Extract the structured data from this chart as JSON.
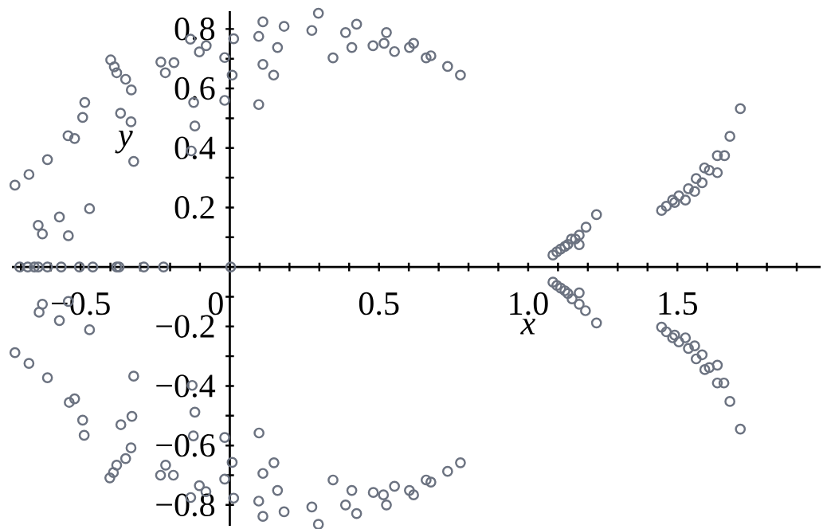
{
  "chart_data": {
    "type": "scatter",
    "xlabel": "x",
    "ylabel": "y",
    "color": "#6b7280",
    "marker": "circle",
    "xlim": [
      -0.73,
      1.98
    ],
    "ylim": [
      -0.87,
      0.86
    ],
    "xticks": [
      {
        "value": -0.7,
        "label": null
      },
      {
        "value": -0.6,
        "label": null
      },
      {
        "value": -0.5,
        "label": "−0.5"
      },
      {
        "value": -0.4,
        "label": null
      },
      {
        "value": -0.3,
        "label": null
      },
      {
        "value": -0.2,
        "label": null
      },
      {
        "value": -0.1,
        "label": null
      },
      0,
      {
        "value": 0.1,
        "label": null
      },
      {
        "value": 0.2,
        "label": null
      },
      {
        "value": 0.3,
        "label": null
      },
      {
        "value": 0.4,
        "label": null
      },
      0.5,
      {
        "value": 0.6,
        "label": null
      },
      {
        "value": 0.7,
        "label": null
      },
      {
        "value": 0.8,
        "label": null
      },
      {
        "value": 0.9,
        "label": null
      },
      {
        "value": 1.0,
        "label": "1.0"
      },
      {
        "value": 1.1,
        "label": null
      },
      {
        "value": 1.2,
        "label": null
      },
      {
        "value": 1.3,
        "label": null
      },
      {
        "value": 1.4,
        "label": null
      },
      1.5,
      {
        "value": 1.6,
        "label": null
      },
      {
        "value": 1.7,
        "label": null
      },
      {
        "value": 1.8,
        "label": null
      },
      {
        "value": 1.9,
        "label": null
      }
    ],
    "yticks": [
      {
        "value": -0.8,
        "label": "−0.8"
      },
      {
        "value": -0.7,
        "label": null
      },
      {
        "value": -0.6,
        "label": "−0.6"
      },
      {
        "value": -0.5,
        "label": null
      },
      {
        "value": -0.4,
        "label": "−0.4"
      },
      {
        "value": -0.3,
        "label": null
      },
      {
        "value": -0.2,
        "label": "−0.2"
      },
      {
        "value": -0.1,
        "label": null
      },
      {
        "value": 0.1,
        "label": null
      },
      0.2,
      {
        "value": 0.3,
        "label": null
      },
      0.4,
      {
        "value": 0.5,
        "label": null
      },
      0.6,
      {
        "value": 0.7,
        "label": null
      },
      0.8
    ],
    "x": [
      -0.72,
      -0.673,
      -0.611,
      -0.542,
      -0.52,
      -0.493,
      -0.486,
      -0.399,
      -0.387,
      -0.379,
      -0.349,
      -0.33,
      -0.366,
      -0.331,
      -0.322,
      -0.231,
      -0.187,
      -0.216,
      -0.132,
      -0.102,
      -0.079,
      -0.121,
      -0.117,
      -0.129,
      -0.017,
      0.008,
      -0.017,
      0.013,
      -0.642,
      -0.628,
      -0.571,
      -0.541,
      -0.47,
      -0.704,
      -0.677,
      -0.655,
      -0.642,
      -0.611,
      -0.565,
      -0.504,
      -0.459,
      -0.379,
      -0.371,
      -0.288,
      -0.222,
      0.003,
      0.111,
      0.097,
      0.182,
      0.16,
      0.111,
      0.147,
      0.097,
      0.297,
      0.275,
      0.346,
      0.388,
      0.425,
      0.409,
      0.48,
      0.517,
      0.525,
      0.552,
      0.602,
      0.616,
      0.658,
      0.674,
      0.73,
      0.773,
      1.711,
      1.676,
      1.634,
      1.658,
      1.634,
      1.591,
      1.607,
      1.563,
      1.583,
      1.537,
      1.558,
      1.505,
      1.527,
      1.484,
      1.491,
      1.463,
      1.447,
      1.229,
      1.194,
      1.171,
      1.171,
      1.145,
      1.083,
      1.096,
      1.109,
      1.123,
      1.133,
      1.158,
      -0.72,
      -0.673,
      -0.611,
      -0.538,
      -0.52,
      -0.493,
      -0.488,
      -0.402,
      -0.39,
      -0.379,
      -0.349,
      -0.331,
      -0.365,
      -0.328,
      -0.322,
      -0.232,
      -0.189,
      -0.215,
      -0.131,
      -0.102,
      -0.08,
      -0.122,
      -0.117,
      -0.126,
      -0.017,
      0.008,
      -0.017,
      0.013,
      -0.639,
      -0.628,
      -0.571,
      -0.541,
      -0.47,
      0.098,
      0.111,
      0.148,
      0.16,
      0.097,
      0.111,
      0.182,
      0.275,
      0.297,
      0.346,
      0.388,
      0.425,
      0.409,
      0.481,
      0.515,
      0.525,
      0.552,
      0.602,
      0.616,
      0.658,
      0.674,
      0.73,
      0.773,
      1.711,
      1.676,
      1.634,
      1.656,
      1.634,
      1.592,
      1.607,
      1.563,
      1.583,
      1.537,
      1.558,
      1.505,
      1.527,
      1.484,
      1.491,
      1.463,
      1.447,
      1.229,
      1.192,
      1.171,
      1.171,
      1.147,
      1.083,
      1.096,
      1.109,
      1.123,
      1.133
    ],
    "values": [
      0.275,
      0.311,
      0.361,
      0.441,
      0.432,
      0.503,
      0.553,
      0.696,
      0.673,
      0.653,
      0.631,
      0.595,
      0.517,
      0.488,
      0.355,
      0.689,
      0.687,
      0.653,
      0.766,
      0.723,
      0.744,
      0.553,
      0.474,
      0.39,
      0.704,
      0.645,
      0.56,
      0.767,
      0.14,
      0.111,
      0.168,
      0.105,
      0.196,
      0,
      0,
      0,
      0,
      0,
      0,
      0,
      0,
      0,
      0,
      0,
      0,
      0,
      0.824,
      0.775,
      0.809,
      0.738,
      0.681,
      0.645,
      0.546,
      0.853,
      0.795,
      0.703,
      0.788,
      0.816,
      0.738,
      0.744,
      0.752,
      0.788,
      0.724,
      0.738,
      0.752,
      0.703,
      0.71,
      0.674,
      0.645,
      0.532,
      0.439,
      0.374,
      0.374,
      0.317,
      0.333,
      0.325,
      0.297,
      0.283,
      0.263,
      0.254,
      0.239,
      0.225,
      0.225,
      0.217,
      0.204,
      0.19,
      0.176,
      0.134,
      0.107,
      0.075,
      0.094,
      0.04,
      0.051,
      0.06,
      0.069,
      0.076,
      0.094,
      -0.288,
      -0.324,
      -0.372,
      -0.455,
      -0.443,
      -0.515,
      -0.566,
      -0.709,
      -0.691,
      -0.666,
      -0.644,
      -0.608,
      -0.53,
      -0.502,
      -0.367,
      -0.7,
      -0.7,
      -0.666,
      -0.775,
      -0.735,
      -0.755,
      -0.568,
      -0.488,
      -0.398,
      -0.713,
      -0.657,
      -0.573,
      -0.777,
      -0.152,
      -0.125,
      -0.18,
      -0.116,
      -0.211,
      -0.558,
      -0.694,
      -0.658,
      -0.751,
      -0.787,
      -0.838,
      -0.823,
      -0.807,
      -0.865,
      -0.716,
      -0.8,
      -0.829,
      -0.751,
      -0.758,
      -0.766,
      -0.8,
      -0.737,
      -0.751,
      -0.766,
      -0.716,
      -0.723,
      -0.687,
      -0.658,
      -0.545,
      -0.452,
      -0.39,
      -0.39,
      -0.33,
      -0.345,
      -0.338,
      -0.309,
      -0.295,
      -0.274,
      -0.265,
      -0.252,
      -0.238,
      -0.238,
      -0.229,
      -0.218,
      -0.202,
      -0.188,
      -0.147,
      -0.125,
      -0.087,
      -0.107,
      -0.051,
      -0.062,
      -0.071,
      -0.08,
      -0.089
    ]
  }
}
